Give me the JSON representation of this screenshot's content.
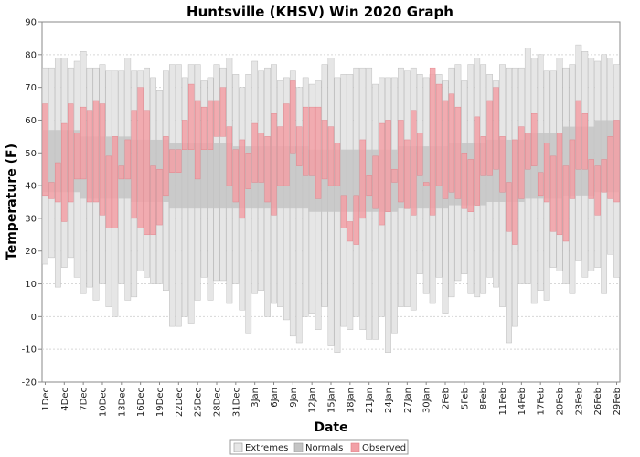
{
  "chart_data": {
    "type": "bar",
    "title": "Huntsville (KHSV) Win 2020 Graph",
    "xlabel": "Date",
    "ylabel": "Temperature (F)",
    "ylim": [
      -20,
      90
    ],
    "yticks": [
      -20,
      -10,
      0,
      10,
      20,
      30,
      40,
      50,
      60,
      70,
      80,
      90
    ],
    "grid": true,
    "legend_position": "bottom",
    "colors": {
      "extremes": "#e6e6e6",
      "normals": "#c4c4c4",
      "observed": "#f2a0a6",
      "observed_edge": "#e07c84",
      "extremes_edge": "#b4b4b4",
      "grid": "#d8d8d8"
    },
    "legend": [
      {
        "key": "extremes",
        "label": "Extremes"
      },
      {
        "key": "normals",
        "label": "Normals"
      },
      {
        "key": "observed",
        "label": "Observed"
      }
    ],
    "tick_labels": [
      "1Dec",
      "4Dec",
      "7Dec",
      "10Dec",
      "13Dec",
      "16Dec",
      "19Dec",
      "22Dec",
      "25Dec",
      "28Dec",
      "31Dec",
      "3Jan",
      "6Jan",
      "9Jan",
      "12Jan",
      "15Jan",
      "18Jan",
      "21Jan",
      "24Jan",
      "27Jan",
      "30Jan",
      "2Feb",
      "5Feb",
      "8Feb",
      "11Feb",
      "14Feb",
      "17Feb",
      "20Feb",
      "23Feb",
      "26Feb",
      "29Feb"
    ],
    "days": 91,
    "normals": {
      "segments": [
        {
          "start": 0,
          "end": 5,
          "low": 38,
          "high": 57
        },
        {
          "start": 6,
          "end": 13,
          "low": 36,
          "high": 55
        },
        {
          "start": 14,
          "end": 19,
          "low": 35,
          "high": 54
        },
        {
          "start": 20,
          "end": 29,
          "low": 33,
          "high": 53
        },
        {
          "start": 30,
          "end": 41,
          "low": 33,
          "high": 52
        },
        {
          "start": 42,
          "end": 55,
          "low": 32,
          "high": 51
        },
        {
          "start": 56,
          "end": 63,
          "low": 33,
          "high": 52
        },
        {
          "start": 64,
          "end": 69,
          "low": 34,
          "high": 53
        },
        {
          "start": 70,
          "end": 75,
          "low": 35,
          "high": 54
        },
        {
          "start": 76,
          "end": 81,
          "low": 36,
          "high": 56
        },
        {
          "start": 82,
          "end": 86,
          "low": 37,
          "high": 58
        },
        {
          "start": 87,
          "end": 90,
          "low": 38,
          "high": 60
        }
      ]
    },
    "extremes": {
      "high": [
        76,
        76,
        79,
        79,
        76,
        78,
        81,
        76,
        76,
        77,
        75,
        75,
        75,
        79,
        75,
        75,
        76,
        73,
        69,
        75,
        77,
        77,
        73,
        77,
        77,
        72,
        73,
        77,
        76,
        79,
        74,
        70,
        74,
        78,
        75,
        76,
        77,
        72,
        73,
        75,
        70,
        73,
        71,
        72,
        77,
        79,
        73,
        74,
        74,
        76,
        76,
        76,
        71,
        73,
        73,
        73,
        76,
        75,
        76,
        74,
        73,
        74,
        74,
        72,
        76,
        77,
        72,
        77,
        79,
        77,
        74,
        72,
        77,
        76,
        76,
        76,
        82,
        79,
        80,
        75,
        75,
        79,
        76,
        77,
        83,
        81,
        79,
        78,
        80,
        79,
        77
      ],
      "low": [
        16,
        18,
        9,
        15,
        18,
        12,
        7,
        9,
        5,
        10,
        3,
        0,
        10,
        5,
        6,
        14,
        12,
        10,
        10,
        8,
        -3,
        -3,
        0,
        -2,
        5,
        12,
        5,
        11,
        11,
        4,
        10,
        2,
        -5,
        7,
        8,
        0,
        4,
        3,
        -1,
        -6,
        -8,
        0,
        1,
        -4,
        3,
        -9,
        -11,
        -3,
        -4,
        0,
        -4,
        -7,
        -7,
        0,
        -11,
        -5,
        3,
        3,
        2,
        13,
        7,
        4,
        12,
        1,
        6,
        11,
        13,
        7,
        6,
        7,
        12,
        9,
        3,
        -8,
        -3,
        10,
        10,
        4,
        8,
        5,
        15,
        14,
        10,
        7,
        17,
        12,
        14,
        15,
        7,
        19,
        12
      ]
    },
    "observed": {
      "high": [
        65,
        41,
        47,
        59,
        65,
        56,
        64,
        63,
        66,
        65,
        49,
        55,
        46,
        54,
        63,
        70,
        63,
        46,
        45,
        55,
        51,
        51,
        60,
        71,
        66,
        64,
        66,
        66,
        70,
        58,
        51,
        54,
        50,
        59,
        56,
        55,
        62,
        58,
        65,
        72,
        58,
        64,
        64,
        64,
        60,
        58,
        53,
        37,
        29,
        37,
        54,
        43,
        49,
        59,
        60,
        45,
        60,
        54,
        63,
        56,
        41,
        76,
        71,
        66,
        68,
        64,
        50,
        48,
        61,
        55,
        66,
        70,
        55,
        41,
        54,
        58,
        56,
        62,
        44,
        53,
        49,
        56,
        46,
        54,
        66,
        62,
        48,
        46,
        48,
        55,
        60
      ],
      "low": [
        37,
        36,
        35,
        29,
        35,
        42,
        42,
        35,
        35,
        31,
        27,
        27,
        42,
        42,
        30,
        27,
        25,
        25,
        28,
        37,
        44,
        44,
        51,
        51,
        42,
        51,
        51,
        55,
        55,
        40,
        35,
        30,
        39,
        41,
        41,
        35,
        31,
        40,
        40,
        50,
        46,
        43,
        43,
        36,
        42,
        40,
        40,
        27,
        23,
        22,
        30,
        37,
        33,
        28,
        32,
        41,
        35,
        33,
        31,
        43,
        40,
        31,
        40,
        36,
        38,
        36,
        33,
        32,
        34,
        43,
        43,
        45,
        38,
        26,
        22,
        36,
        45,
        46,
        37,
        35,
        26,
        25,
        23,
        36,
        45,
        45,
        36,
        31,
        38,
        36,
        35
      ]
    }
  }
}
